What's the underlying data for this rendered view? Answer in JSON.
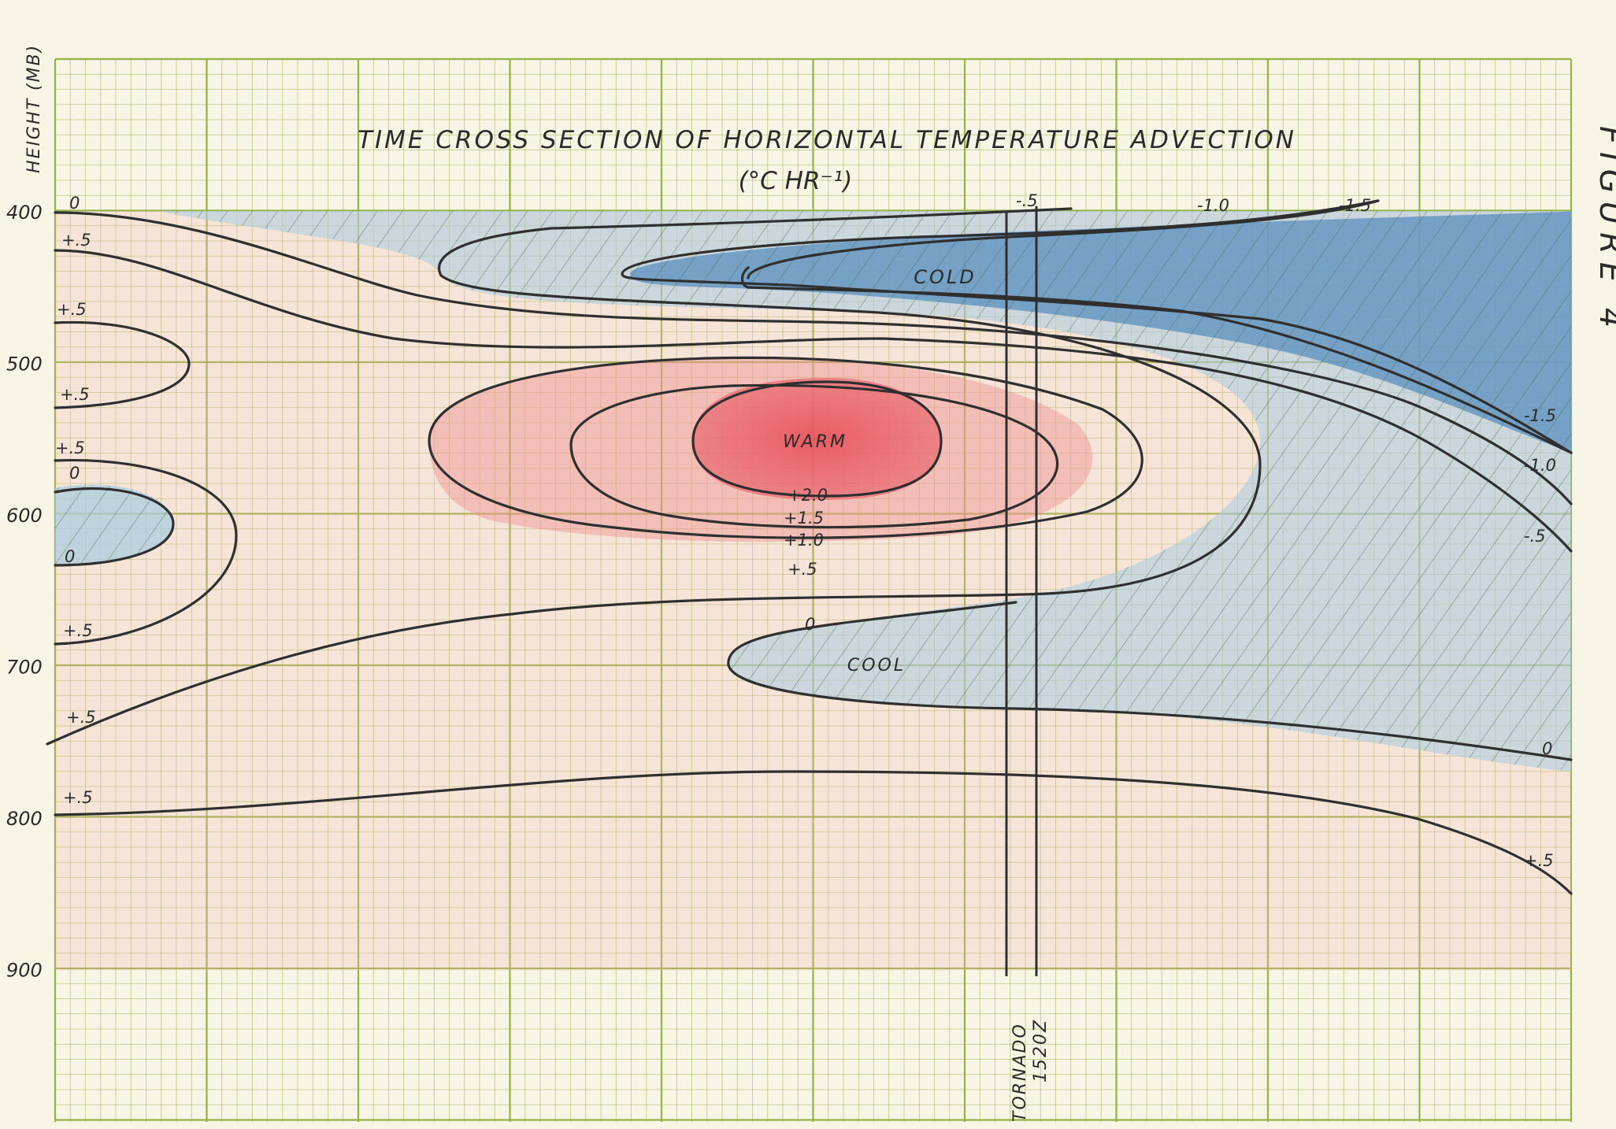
{
  "chart_data": {
    "type": "contour",
    "title": "TIME CROSS SECTION OF HORIZONTAL TEMPERATURE ADVECTION",
    "subtitle": "(°C HR⁻¹)",
    "ylabel": "HEIGHT (MB)",
    "yticks": [
      "400",
      "500",
      "600",
      "700",
      "800",
      "900"
    ],
    "ylim": [
      1000,
      300
    ],
    "side_label": "FIGURE 4",
    "regions": [
      "COLD",
      "WARM",
      "COOL"
    ],
    "tornado": "TORNADO",
    "tornado_time": "1520Z",
    "contour_labels": [
      {
        "id": "l0a",
        "text": "0"
      },
      {
        "id": "l5a",
        "text": "+.5"
      },
      {
        "id": "l5b",
        "text": "+.5"
      },
      {
        "id": "l5c",
        "text": "+.5"
      },
      {
        "id": "l5d",
        "text": "+.5"
      },
      {
        "id": "l0b",
        "text": "0"
      },
      {
        "id": "l0c",
        "text": "0"
      },
      {
        "id": "l5e",
        "text": "+.5"
      },
      {
        "id": "l5f",
        "text": "+.5"
      },
      {
        "id": "l5g",
        "text": "+.5"
      },
      {
        "id": "n5top",
        "text": "-.5"
      },
      {
        "id": "n10top",
        "text": "-1.0"
      },
      {
        "id": "n15top",
        "text": "-1.5"
      },
      {
        "id": "w20",
        "text": "+2.0"
      },
      {
        "id": "w15",
        "text": "+1.5"
      },
      {
        "id": "w10",
        "text": "+1.0"
      },
      {
        "id": "w05",
        "text": "+.5"
      },
      {
        "id": "c0mid",
        "text": "0"
      },
      {
        "id": "n15r",
        "text": "-1.5"
      },
      {
        "id": "n10r",
        "text": "-1.0"
      },
      {
        "id": "n5r",
        "text": "-.5"
      },
      {
        "id": "z0r",
        "text": "0"
      },
      {
        "id": "p5r",
        "text": "+.5"
      }
    ]
  }
}
